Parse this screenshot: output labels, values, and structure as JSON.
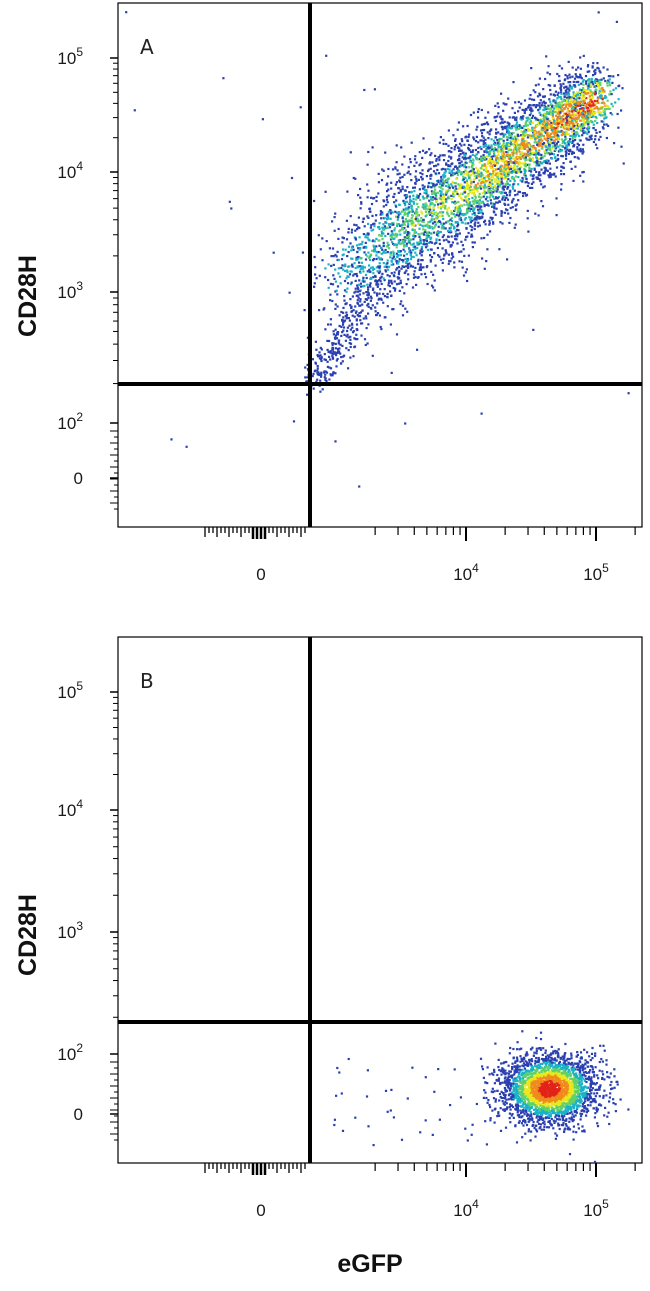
{
  "chart_data": [
    {
      "type": "scatter",
      "panel_label": "A",
      "xlabel": "",
      "ylabel": "CD28H",
      "x_scale": "biexponential",
      "y_scale": "biexponential",
      "x_ticks": [
        {
          "base": "0",
          "exp": ""
        },
        {
          "base": "10",
          "exp": "4"
        },
        {
          "base": "10",
          "exp": "5"
        }
      ],
      "y_ticks": [
        {
          "base": "10",
          "exp": "5"
        },
        {
          "base": "10",
          "exp": "4"
        },
        {
          "base": "10",
          "exp": "3"
        },
        {
          "base": "10",
          "exp": "2"
        },
        {
          "base": "0",
          "exp": ""
        }
      ],
      "x_gate": 1100,
      "y_gate": 180,
      "population": {
        "description_values": "eGFP and CD28H co-increase along diagonal",
        "x_range": [
          1100,
          200000
        ],
        "y_range": [
          400,
          150000
        ],
        "peak": {
          "x": 70000,
          "y": 30000
        }
      },
      "quadrants": [
        "CD28H+ eGFP-",
        "CD28H+ eGFP+",
        "CD28H- eGFP-",
        "CD28H- eGFP+"
      ],
      "grid": false
    },
    {
      "type": "scatter",
      "panel_label": "B",
      "xlabel": "eGFP",
      "ylabel": "CD28H",
      "x_scale": "biexponential",
      "y_scale": "biexponential",
      "x_ticks": [
        {
          "base": "0",
          "exp": ""
        },
        {
          "base": "10",
          "exp": "4"
        },
        {
          "base": "10",
          "exp": "5"
        }
      ],
      "y_ticks": [
        {
          "base": "10",
          "exp": "5"
        },
        {
          "base": "10",
          "exp": "4"
        },
        {
          "base": "10",
          "exp": "3"
        },
        {
          "base": "10",
          "exp": "2"
        },
        {
          "base": "0",
          "exp": ""
        }
      ],
      "x_gate": 1100,
      "y_gate": 180,
      "population": {
        "description_values": "eGFP high, CD28H low",
        "x_range": [
          8000,
          200000
        ],
        "y_range": [
          -30,
          150
        ],
        "peak": {
          "x": 50000,
          "y": 40
        }
      },
      "grid": false
    }
  ],
  "colors": {
    "density_low": "#2a3fb0",
    "density_mid": "#19b2c8",
    "density_high": "#e8e81a",
    "density_peak": "#e2231a",
    "gate_line": "#000000"
  }
}
